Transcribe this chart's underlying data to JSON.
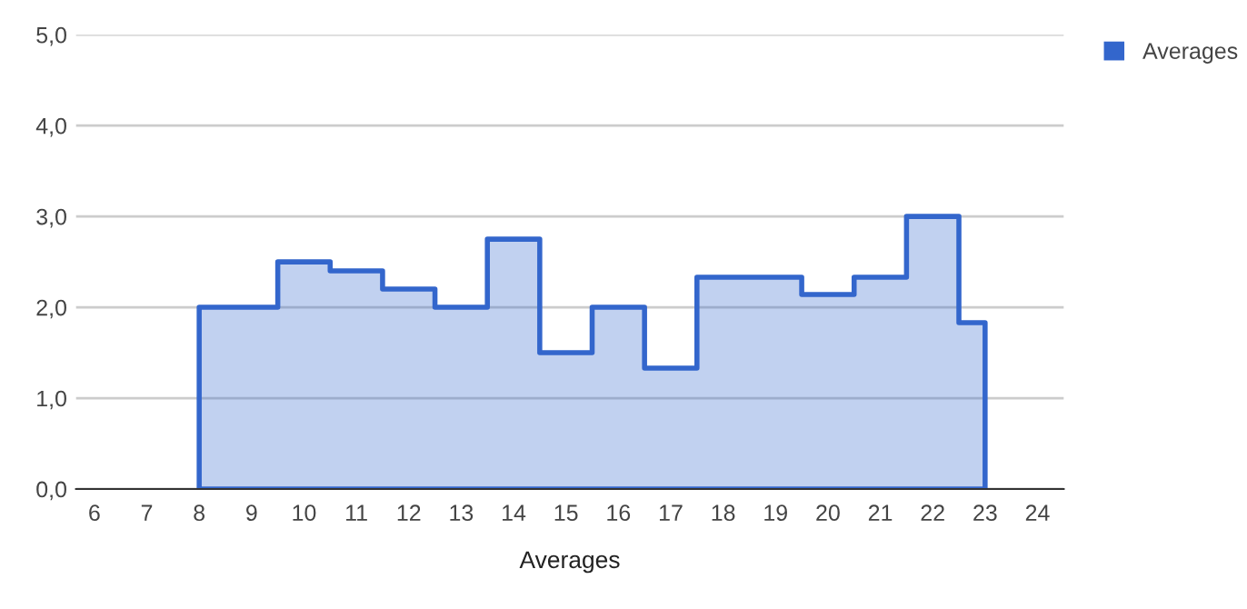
{
  "chart_data": {
    "type": "area",
    "xlabel": "Averages",
    "x": [
      8,
      9,
      10,
      11,
      12,
      13,
      14,
      15,
      16,
      17,
      18,
      19,
      20,
      21,
      22,
      23
    ],
    "series": [
      {
        "name": "Averages",
        "color": "#3366cc",
        "values": [
          2.0,
          2.0,
          2.5,
          2.4,
          2.2,
          2.0,
          2.75,
          1.5,
          2.0,
          1.33,
          2.33,
          2.33,
          2.14,
          2.33,
          3.0,
          1.83
        ]
      }
    ],
    "xlim": [
      5.65,
      24.5
    ],
    "xticks": [
      6,
      7,
      8,
      9,
      10,
      11,
      12,
      13,
      14,
      15,
      16,
      17,
      18,
      19,
      20,
      21,
      22,
      23,
      24
    ],
    "ylim": [
      0,
      5
    ],
    "yticks": [
      {
        "value": 0,
        "label": "0,0"
      },
      {
        "value": 1,
        "label": "1,0"
      },
      {
        "value": 2,
        "label": "2,0"
      },
      {
        "value": 3,
        "label": "3,0"
      },
      {
        "value": 4,
        "label": "4,0"
      },
      {
        "value": 5,
        "label": "5,0"
      }
    ],
    "grid": "y",
    "legend": "top right"
  }
}
